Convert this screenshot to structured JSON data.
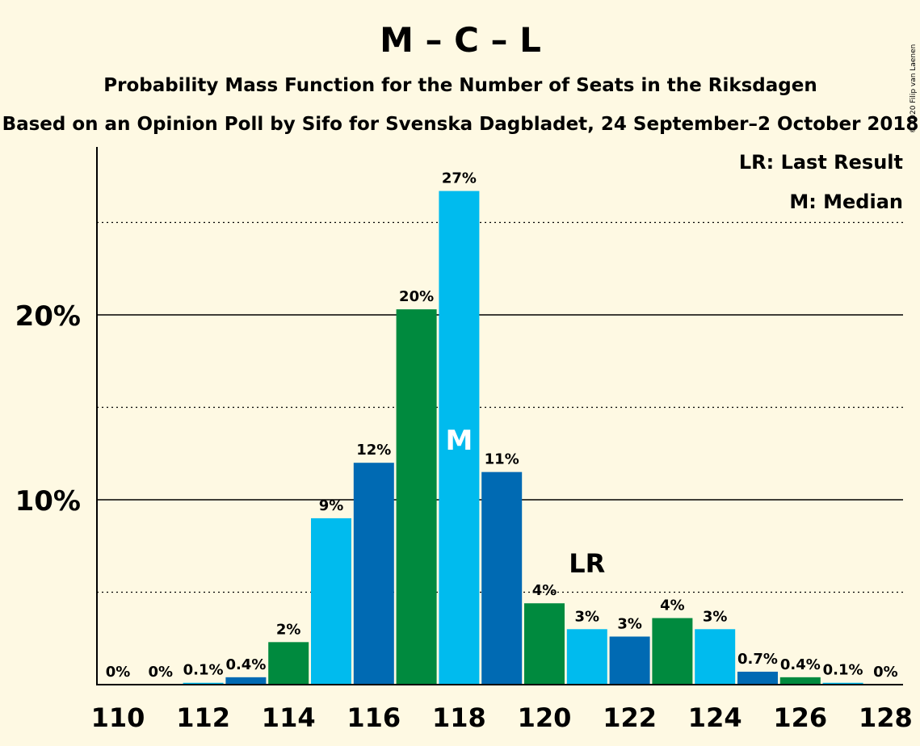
{
  "chart_data": {
    "type": "bar",
    "title": "M – C – L",
    "subtitle1": "Probability Mass Function for the Number of Seats in the Riksdagen",
    "subtitle2": "Based on an Opinion Poll by Sifo for Svenska Dagbladet, 24 September–2 October 2018",
    "copyright": "© 2020 Filip van Laenen",
    "legend": {
      "last_result": "LR: Last Result",
      "median": "M: Median",
      "placement": "top-right"
    },
    "x": [
      110,
      111,
      112,
      113,
      114,
      115,
      116,
      117,
      118,
      119,
      120,
      121,
      122,
      123,
      124,
      125,
      126,
      127,
      128
    ],
    "values": [
      0,
      0,
      0.1,
      0.4,
      2.3,
      9.0,
      12.0,
      20.3,
      26.7,
      11.5,
      4.4,
      3.0,
      2.6,
      3.6,
      3.0,
      0.7,
      0.4,
      0.1,
      0
    ],
    "value_labels": [
      "0%",
      "0%",
      "0.1%",
      "0.4%",
      "2%",
      "9%",
      "12%",
      "20%",
      "27%",
      "11%",
      "4%",
      "3%",
      "3%",
      "4%",
      "3%",
      "0.7%",
      "0.4%",
      "0.1%",
      "0%"
    ],
    "x_tick_labels": [
      "110",
      "112",
      "114",
      "116",
      "118",
      "120",
      "122",
      "124",
      "126",
      "128"
    ],
    "y_tick_labels": [
      "10%",
      "20%"
    ],
    "y_ticks": [
      10,
      20
    ],
    "y_minor_ticks": [
      5,
      15,
      25
    ],
    "ylim": [
      0,
      29
    ],
    "median_seat": 118,
    "median_marker": "M",
    "last_result_seat": 121,
    "last_result_marker": "LR",
    "colors": {
      "dark_blue": "#006ab3",
      "green": "#008a3e",
      "light_blue": "#00bbee",
      "background": "#fef9e3"
    }
  }
}
